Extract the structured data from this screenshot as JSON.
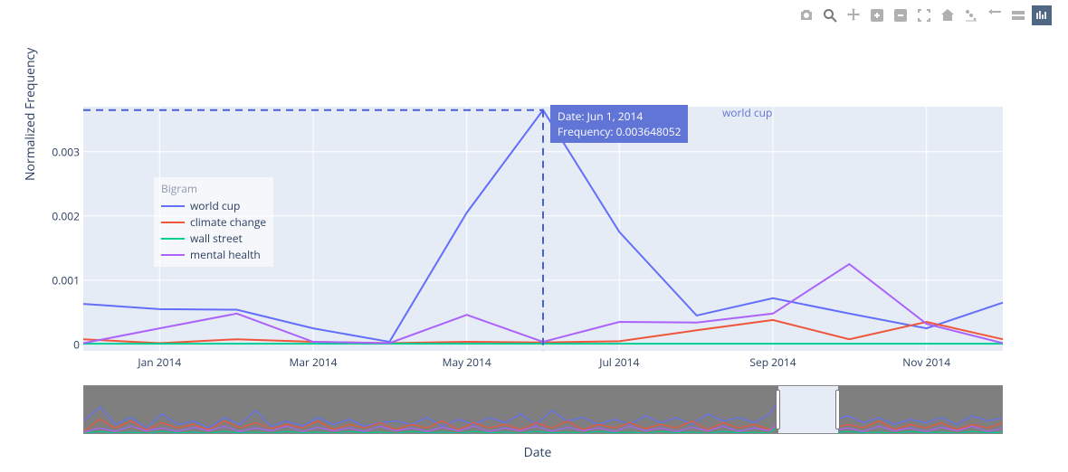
{
  "toolbar": {
    "icons": [
      "camera",
      "zoom",
      "pan",
      "zoom-in",
      "zoom-out",
      "autoscale",
      "home",
      "spike",
      "tag",
      "compare",
      "logo"
    ],
    "active_index": 10
  },
  "axes": {
    "x_title": "Date",
    "y_title": "Normalized Frequency",
    "y_ticks": [
      0,
      0.001,
      0.002,
      0.003
    ],
    "y_tick_labels": [
      "0",
      "0.001",
      "0.002",
      "0.003"
    ],
    "ylim": [
      -0.0001,
      0.0037
    ],
    "x_tick_labels": [
      "Jan 2014",
      "Mar 2014",
      "May 2014",
      "Jul 2014",
      "Sep 2014",
      "Nov 2014"
    ],
    "x_tick_positions": [
      0.083,
      0.25,
      0.417,
      0.583,
      0.75,
      0.917
    ],
    "plot_bg": "#e5ecf6",
    "grid_color": "#ffffff",
    "font_color": "#2a3f5f",
    "font_size": 12,
    "title_font_size": 14
  },
  "legend": {
    "title": "Bigram",
    "items": [
      {
        "label": "world cup",
        "color": "#636efa"
      },
      {
        "label": "climate change",
        "color": "#ef553b"
      },
      {
        "label": "wall street",
        "color": "#00cc96"
      },
      {
        "label": "mental health",
        "color": "#ab63fa"
      }
    ]
  },
  "chart": {
    "type": "line",
    "x_dates": [
      "2013-12-01",
      "2014-01-01",
      "2014-02-01",
      "2014-03-01",
      "2014-04-01",
      "2014-05-01",
      "2014-06-01",
      "2014-07-01",
      "2014-08-01",
      "2014-09-01",
      "2014-10-01",
      "2014-11-01",
      "2014-12-01"
    ],
    "x_positions": [
      0.0,
      0.083,
      0.167,
      0.25,
      0.333,
      0.417,
      0.5,
      0.583,
      0.667,
      0.75,
      0.833,
      0.917,
      1.0
    ],
    "series": [
      {
        "name": "world cup",
        "color": "#636efa",
        "y": [
          0.00063,
          0.00055,
          0.00054,
          0.00025,
          4e-05,
          0.00205,
          0.003648052,
          0.00175,
          0.00045,
          0.00072,
          0.00048,
          0.00025,
          0.00065
        ]
      },
      {
        "name": "climate change",
        "color": "#ef553b",
        "y": [
          8e-05,
          2e-05,
          8e-05,
          4e-05,
          2e-05,
          4e-05,
          3e-05,
          5e-05,
          0.00022,
          0.00038,
          8e-05,
          0.00035,
          8e-05
        ]
      },
      {
        "name": "wall street",
        "color": "#00cc96",
        "y": [
          1e-05,
          1e-05,
          1e-05,
          1e-05,
          1e-05,
          1e-05,
          1e-05,
          1e-05,
          1e-05,
          1e-05,
          1e-05,
          1e-05,
          1e-05
        ]
      },
      {
        "name": "mental health",
        "color": "#ab63fa",
        "y": [
          2e-05,
          0.00025,
          0.00048,
          4e-05,
          2e-05,
          0.00046,
          4e-05,
          0.00035,
          0.00034,
          0.00048,
          0.00125,
          0.00032,
          2e-05
        ]
      }
    ],
    "line_width": 2
  },
  "hover": {
    "x_index": 6,
    "line1": "Date: Jun 1, 2014",
    "line2": "Frequency: 0.003648052",
    "series_label": "world cup",
    "box_bg": "#6175d6",
    "crosshair_color": "#4a5fd1",
    "label_color": "#6175d6"
  },
  "rangeslider": {
    "bg": "#7f7f7f",
    "window_bg": "#e5ecf6",
    "window_start": 0.755,
    "window_end": 0.82,
    "mini_series": [
      {
        "color": "#636efa",
        "y": [
          0.4,
          0.8,
          0.3,
          0.5,
          0.2,
          0.6,
          0.3,
          0.4,
          0.2,
          0.5,
          0.3,
          0.7,
          0.25,
          0.4,
          0.25,
          0.5,
          0.3,
          0.45,
          0.25,
          0.35,
          0.4,
          0.3,
          0.5,
          0.25,
          0.45,
          0.3,
          0.5,
          0.35,
          0.6,
          0.3,
          0.7,
          0.4,
          0.5,
          0.3,
          0.45,
          0.3,
          0.55,
          0.35,
          0.5,
          0.3,
          0.6,
          0.4,
          0.5,
          0.35,
          0.6,
          1.3,
          0.5,
          0.7,
          0.4,
          0.55,
          0.35,
          0.5,
          0.3,
          0.45,
          0.35,
          0.5,
          0.3,
          0.55,
          0.4,
          0.5
        ]
      },
      {
        "color": "#ef553b",
        "y": [
          0.1,
          0.45,
          0.2,
          0.4,
          0.15,
          0.35,
          0.2,
          0.3,
          0.15,
          0.4,
          0.2,
          0.35,
          0.18,
          0.3,
          0.2,
          0.4,
          0.15,
          0.3,
          0.2,
          0.35,
          0.15,
          0.3,
          0.2,
          0.4,
          0.15,
          0.35,
          0.2,
          0.3,
          0.15,
          0.35,
          0.2,
          0.4,
          0.15,
          0.3,
          0.2,
          0.35,
          0.18,
          0.3,
          0.2,
          0.4,
          0.15,
          0.35,
          0.2,
          0.3,
          0.15,
          0.4,
          0.2,
          0.35,
          0.18,
          0.3,
          0.2,
          0.4,
          0.15,
          0.3,
          0.2,
          0.35,
          0.15,
          0.3,
          0.2,
          0.35
        ]
      },
      {
        "color": "#00cc96",
        "y": [
          0.05,
          0.1,
          0.05,
          0.08,
          0.05,
          0.1,
          0.06,
          0.08,
          0.05,
          0.1,
          0.06,
          0.08,
          0.05,
          0.1,
          0.06,
          0.08,
          0.05,
          0.1,
          0.06,
          0.08,
          0.05,
          0.1,
          0.06,
          0.08,
          0.05,
          0.1,
          0.06,
          0.08,
          0.05,
          0.1,
          0.06,
          0.08,
          0.05,
          0.1,
          0.06,
          0.08,
          0.05,
          0.1,
          0.06,
          0.08,
          0.05,
          0.1,
          0.06,
          0.08,
          0.05,
          0.5,
          0.06,
          0.08,
          0.05,
          0.1,
          0.06,
          0.08,
          0.05,
          0.1,
          0.06,
          0.08,
          0.05,
          0.1,
          0.06,
          0.08
        ]
      },
      {
        "color": "#ab63fa",
        "y": [
          0.08,
          0.2,
          0.1,
          0.25,
          0.12,
          0.2,
          0.1,
          0.22,
          0.12,
          0.25,
          0.1,
          0.2,
          0.12,
          0.25,
          0.1,
          0.22,
          0.12,
          0.2,
          0.1,
          0.25,
          0.12,
          0.2,
          0.1,
          0.22,
          0.12,
          0.25,
          0.1,
          0.2,
          0.12,
          0.25,
          0.1,
          0.22,
          0.12,
          0.2,
          0.1,
          0.25,
          0.12,
          0.2,
          0.1,
          0.22,
          0.12,
          0.25,
          0.1,
          0.2,
          0.12,
          0.6,
          0.1,
          0.22,
          0.12,
          0.2,
          0.1,
          0.25,
          0.12,
          0.2,
          0.1,
          0.22,
          0.12,
          0.25,
          0.1,
          0.2
        ]
      }
    ]
  }
}
